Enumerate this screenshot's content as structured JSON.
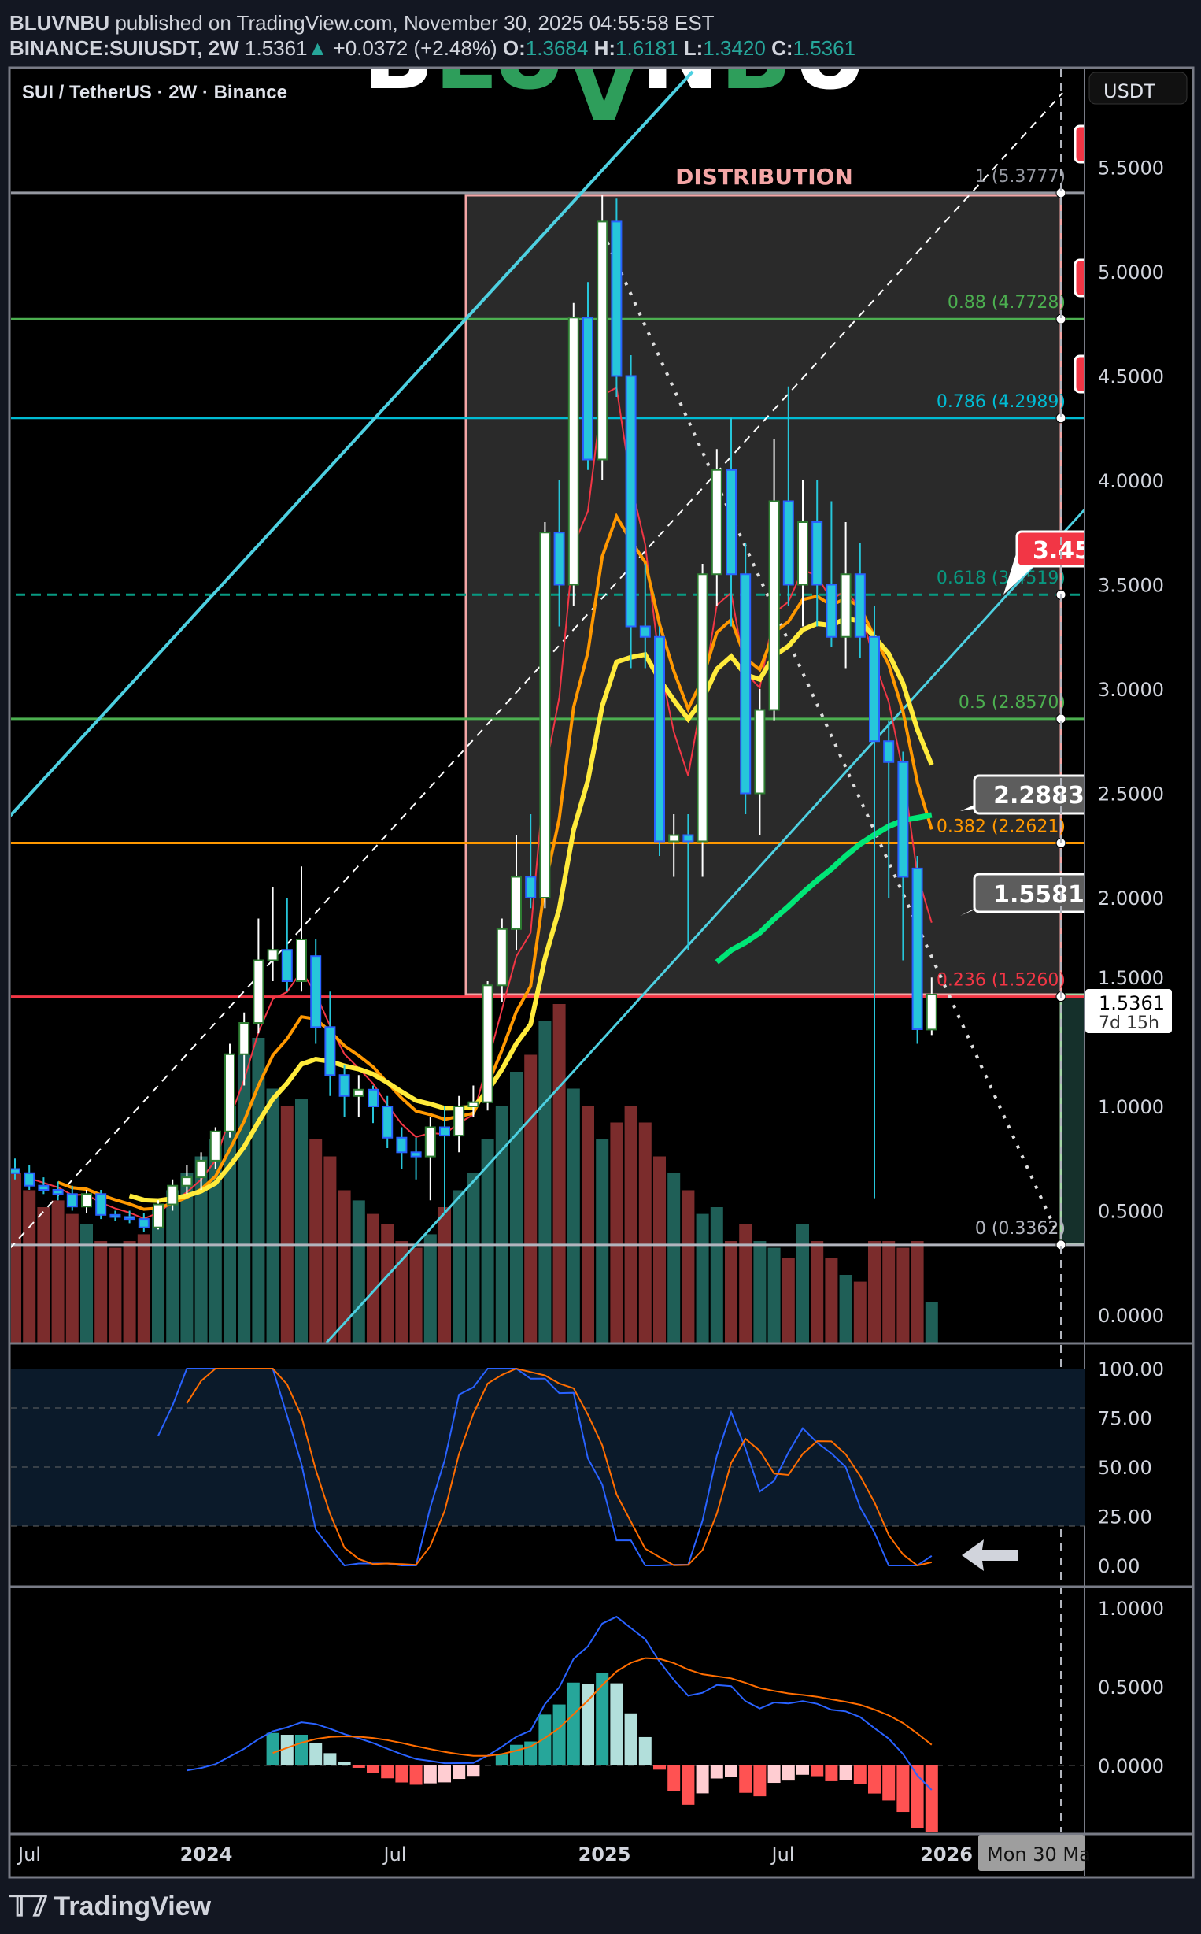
{
  "header": {
    "author": "BLUVNBU",
    "published": "published on TradingView.com, November 30, 2025 04:55:58 EST",
    "symbol": "BINANCE:SUIUSDT, 2W",
    "last": "1.5361",
    "change": "+0.0372 (+2.48%)",
    "o_label": "O:",
    "o": "1.3684",
    "h_label": "H:",
    "h": "1.6181",
    "l_label": "L:",
    "l": "1.3420",
    "c_label": "C:",
    "c": "1.5361"
  },
  "legend": "SUI / TetherUS · 2W · Binance",
  "watermark": "BLUVNBU",
  "currency": "USDT",
  "footer": {
    "brand": "TradingView"
  },
  "colors": {
    "up_body": "#ffffff",
    "up_border": "#2e7d32",
    "down_body": "#26c6da",
    "down_border": "#2962ff",
    "vol_up": "#1f5f57",
    "vol_down": "#7b2c2c",
    "ema_fast": "#f23645",
    "ema_mid": "#ff9800",
    "ema_slow": "#ffeb3b",
    "sma_long": "#00e676",
    "stoch_k": "#2962ff",
    "stoch_d": "#ff6d00",
    "distribution": "#f4a6a6"
  },
  "annotations": {
    "distribution": "DISTRIBUTION",
    "callout_red": "3.45",
    "callout_1": "2.2883",
    "callout_2": "1.5581",
    "price_label": "1.5361",
    "countdown": "7d 15h",
    "crosshair_date": "Mon 30 Ma"
  },
  "chart_data": {
    "type": "candlestick",
    "price_ticks": [
      "5.5000",
      "5.0000",
      "4.5000",
      "4.0000",
      "3.5000",
      "3.0000",
      "2.5000",
      "2.0000",
      "1.5000",
      "1.0000",
      "0.5000",
      "0.0000"
    ],
    "price_range": [
      0,
      5.5
    ],
    "x_ticks": [
      "Jul",
      "2024",
      "Jul",
      "2025",
      "Jul",
      "2026"
    ],
    "fib_levels": [
      {
        "label": "1 (5.3777)",
        "value": 5.3777,
        "color": "#9598a1"
      },
      {
        "label": "0.88 (4.7728)",
        "value": 4.7728,
        "color": "#4caf50"
      },
      {
        "label": "0.786 (4.2989)",
        "value": 4.2989,
        "color": "#00bcd4"
      },
      {
        "label": "0.618 (3.4519)",
        "value": 3.4519,
        "color": "#089981"
      },
      {
        "label": "0.5 (2.8570)",
        "value": 2.857,
        "color": "#4caf50"
      },
      {
        "label": "0.382 (2.2621)",
        "value": 2.2621,
        "color": "#ff9800"
      },
      {
        "label": "0.236 (1.5260)",
        "value": 1.526,
        "color": "#f23645"
      },
      {
        "label": "0 (0.3362)",
        "value": 0.3362,
        "color": "#b2b5be"
      }
    ],
    "candle_fields": [
      "open",
      "high",
      "low",
      "close",
      "volume_relative"
    ],
    "candles": [
      [
        0.7,
        0.75,
        0.65,
        0.68,
        50
      ],
      [
        0.68,
        0.72,
        0.6,
        0.62,
        45
      ],
      [
        0.62,
        0.66,
        0.58,
        0.6,
        40
      ],
      [
        0.6,
        0.64,
        0.55,
        0.58,
        42
      ],
      [
        0.58,
        0.62,
        0.5,
        0.52,
        38
      ],
      [
        0.52,
        0.6,
        0.49,
        0.58,
        35
      ],
      [
        0.58,
        0.6,
        0.46,
        0.48,
        30
      ],
      [
        0.48,
        0.5,
        0.45,
        0.47,
        28
      ],
      [
        0.47,
        0.5,
        0.44,
        0.46,
        30
      ],
      [
        0.46,
        0.49,
        0.4,
        0.42,
        32
      ],
      [
        0.42,
        0.55,
        0.41,
        0.53,
        40
      ],
      [
        0.53,
        0.65,
        0.5,
        0.62,
        45
      ],
      [
        0.62,
        0.72,
        0.58,
        0.66,
        50
      ],
      [
        0.66,
        0.78,
        0.6,
        0.74,
        55
      ],
      [
        0.74,
        0.9,
        0.7,
        0.88,
        60
      ],
      [
        0.88,
        1.3,
        0.85,
        1.25,
        70
      ],
      [
        1.25,
        1.45,
        1.1,
        1.4,
        85
      ],
      [
        1.4,
        1.9,
        1.35,
        1.7,
        90
      ],
      [
        1.7,
        2.05,
        1.6,
        1.75,
        75
      ],
      [
        1.75,
        2.0,
        1.55,
        1.6,
        70
      ],
      [
        1.6,
        2.15,
        1.55,
        1.8,
        72
      ],
      [
        1.72,
        1.8,
        1.3,
        1.38,
        60
      ],
      [
        1.38,
        1.55,
        1.05,
        1.15,
        55
      ],
      [
        1.15,
        1.2,
        0.95,
        1.05,
        45
      ],
      [
        1.05,
        1.15,
        0.95,
        1.08,
        42
      ],
      [
        1.08,
        1.1,
        0.92,
        1.0,
        38
      ],
      [
        1.0,
        1.05,
        0.8,
        0.85,
        35
      ],
      [
        0.85,
        0.9,
        0.7,
        0.78,
        30
      ],
      [
        0.78,
        0.85,
        0.65,
        0.76,
        28
      ],
      [
        0.76,
        0.95,
        0.55,
        0.9,
        32
      ],
      [
        0.9,
        1.0,
        0.48,
        0.86,
        40
      ],
      [
        0.86,
        1.05,
        0.78,
        1.0,
        45
      ],
      [
        1.0,
        1.1,
        0.95,
        1.02,
        50
      ],
      [
        1.02,
        1.6,
        0.98,
        1.58,
        60
      ],
      [
        1.58,
        1.9,
        1.5,
        1.85,
        70
      ],
      [
        1.85,
        2.3,
        1.75,
        2.1,
        80
      ],
      [
        2.1,
        2.4,
        1.95,
        2.0,
        85
      ],
      [
        2.0,
        3.8,
        1.95,
        3.75,
        95
      ],
      [
        3.75,
        4.0,
        3.3,
        3.5,
        100
      ],
      [
        3.5,
        4.85,
        3.4,
        4.78,
        75
      ],
      [
        4.78,
        4.95,
        4.05,
        4.1,
        70
      ],
      [
        4.1,
        5.37,
        4.0,
        5.24,
        60
      ],
      [
        5.24,
        5.35,
        4.4,
        4.5,
        65
      ],
      [
        4.5,
        4.6,
        3.1,
        3.3,
        70
      ],
      [
        3.3,
        3.6,
        3.1,
        3.25,
        65
      ],
      [
        3.25,
        3.3,
        2.2,
        2.27,
        55
      ],
      [
        2.27,
        2.4,
        2.1,
        2.3,
        50
      ],
      [
        2.3,
        2.4,
        1.75,
        2.27,
        45
      ],
      [
        2.27,
        3.6,
        2.1,
        3.55,
        38
      ],
      [
        3.55,
        4.15,
        3.4,
        4.05,
        40
      ],
      [
        4.05,
        4.3,
        3.3,
        3.55,
        30
      ],
      [
        3.55,
        3.7,
        2.4,
        2.5,
        35
      ],
      [
        2.5,
        3.0,
        2.3,
        2.9,
        30
      ],
      [
        2.9,
        4.2,
        2.85,
        3.9,
        28
      ],
      [
        3.9,
        4.45,
        3.4,
        3.5,
        25
      ],
      [
        3.5,
        4.0,
        3.3,
        3.8,
        35
      ],
      [
        3.8,
        4.0,
        3.3,
        3.5,
        30
      ],
      [
        3.5,
        3.9,
        3.2,
        3.25,
        25
      ],
      [
        3.25,
        3.8,
        3.1,
        3.55,
        20
      ],
      [
        3.55,
        3.7,
        3.15,
        3.25,
        18
      ],
      [
        3.25,
        3.4,
        0.56,
        2.75,
        30
      ],
      [
        2.75,
        2.85,
        2.0,
        2.65,
        30
      ],
      [
        2.65,
        2.7,
        1.7,
        2.1,
        28
      ],
      [
        2.14,
        2.2,
        1.3,
        1.37,
        30
      ],
      [
        1.3684,
        1.6181,
        1.342,
        1.5361,
        12
      ]
    ],
    "stoch_rsi": {
      "ticks": [
        "100.00",
        "75.00",
        "50.00",
        "25.00",
        "0.00"
      ],
      "range": [
        0,
        100
      ],
      "bands": [
        80,
        50,
        20
      ]
    },
    "macd": {
      "ticks": [
        "1.0000",
        "0.5000",
        "0.0000"
      ],
      "range": [
        -0.2,
        1.1
      ]
    }
  }
}
